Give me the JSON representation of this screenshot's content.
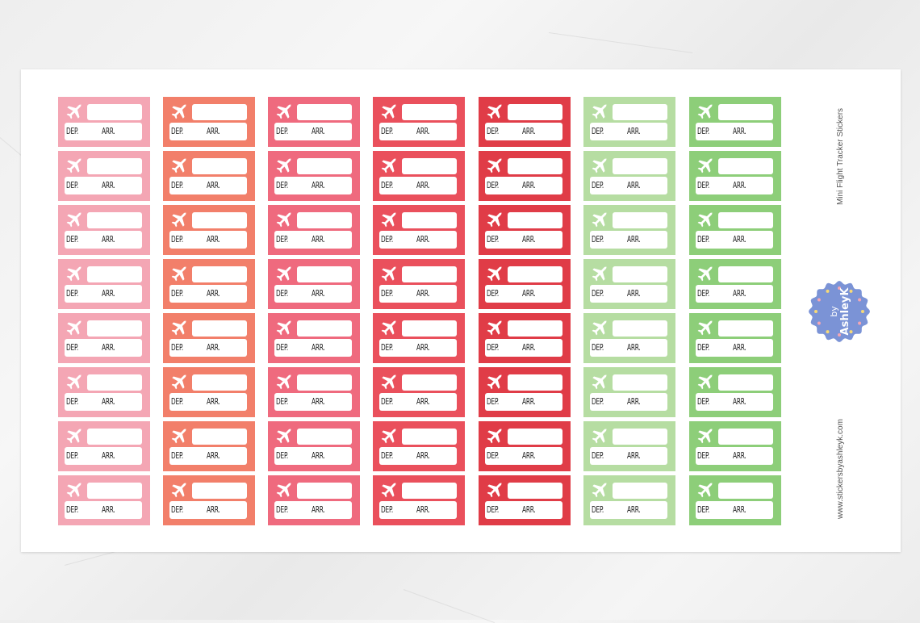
{
  "sheet": {
    "title": "Mini Flight Tracker Stickers",
    "website": "www.stickersbyashleyk.com",
    "logo": {
      "line1": "by",
      "line2": "AshleyK",
      "color": "#7b93d6"
    }
  },
  "sticker": {
    "dep_label": "DEP.",
    "arr_label": "ARR.",
    "icon": "airplane-icon",
    "rows": 8
  },
  "columns": [
    {
      "color": "#f4a6b4"
    },
    {
      "color": "#f27f6a"
    },
    {
      "color": "#ef6a7e"
    },
    {
      "color": "#ea505c"
    },
    {
      "color": "#e03c47"
    },
    {
      "color": "#b6dda2"
    },
    {
      "color": "#8dce79"
    }
  ]
}
